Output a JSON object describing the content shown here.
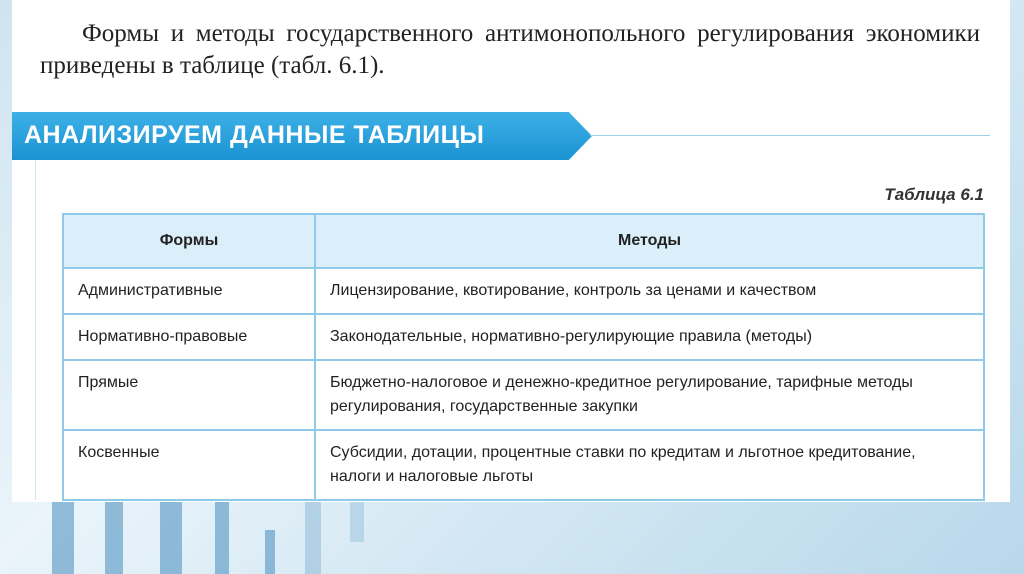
{
  "intro": "Формы и методы государственного антимонопольного регулирования экономики приведены в таблице (табл. 6.1).",
  "banner": "АНАЛИЗИРУЕМ ДАННЫЕ ТАБЛИЦЫ",
  "caption": "Таблица 6.1",
  "table": {
    "headers": [
      "Формы",
      "Методы"
    ],
    "rows": [
      {
        "form": "Административные",
        "methods": "Лицензирование, квотирование, контроль за ценами и качеством"
      },
      {
        "form": "Нормативно-правовые",
        "methods": "Законодательные, нормативно-регулирующие правила (методы)"
      },
      {
        "form": "Прямые",
        "methods": "Бюджетно-налоговое и денежно-кредитное регулирование, тарифные методы регулирования, государственные закупки"
      },
      {
        "form": "Косвенные",
        "methods": "Субсидии, дотации, процентные ставки по кредитам и льготное кредитование, налоги и налоговые льготы"
      }
    ]
  },
  "colors": {
    "banner": "#1b93d3",
    "header_bg": "#dbeffa",
    "border": "#8fcbe8"
  }
}
